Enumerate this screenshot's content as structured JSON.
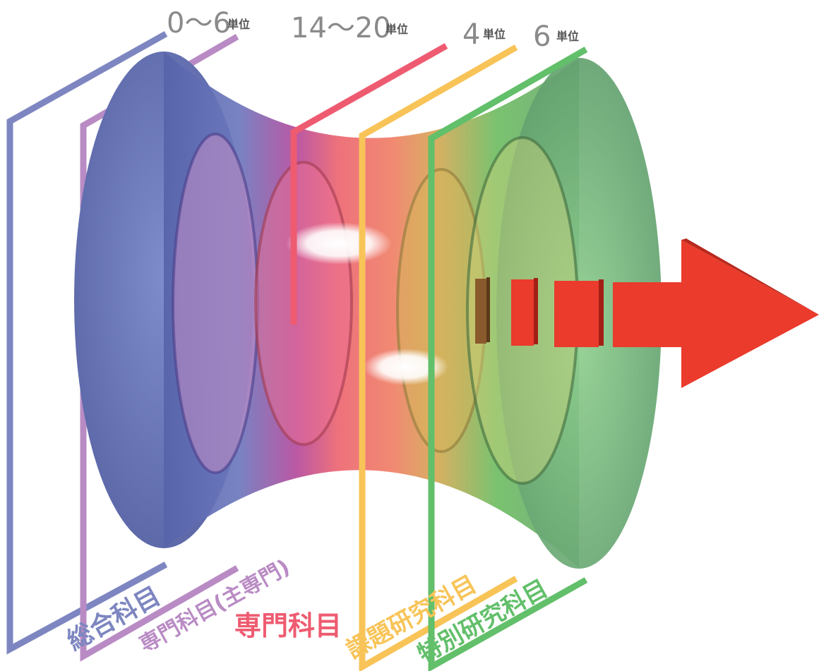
{
  "credits": [
    {
      "value": "0〜6",
      "unit": "単位"
    },
    {
      "value": "14〜20",
      "unit": "単位"
    },
    {
      "value": "4",
      "unit": "単位"
    },
    {
      "value": "6",
      "unit": "単位"
    }
  ],
  "categories": [
    {
      "label": "総合科目",
      "color": "#7d86c0"
    },
    {
      "label": "専門科目(主専門)",
      "color": "#b98bc4"
    },
    {
      "label": "専門科目",
      "color": "#ee5b70"
    },
    {
      "label": "課題研究科目",
      "color": "#f8c458"
    },
    {
      "label": "特別研究科目",
      "color": "#62bf6a"
    }
  ]
}
